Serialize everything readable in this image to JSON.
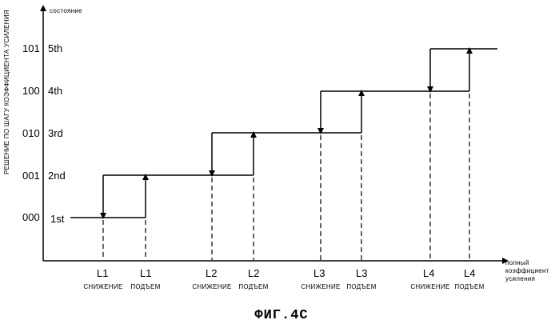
{
  "y_axis": {
    "label_top": "состояние",
    "label_side": "РЕШЕНИЕ ПО ШАГУ КОЭФФИЦИЕНТА УСИЛЕНИЯ"
  },
  "x_axis": {
    "label_line1": "полный",
    "label_line2": "коэффициент",
    "label_line3": "усиления"
  },
  "states": [
    {
      "code": "000",
      "name": "1st"
    },
    {
      "code": "001",
      "name": "2nd"
    },
    {
      "code": "010",
      "name": "3rd"
    },
    {
      "code": "100",
      "name": "4th"
    },
    {
      "code": "101",
      "name": "5th"
    }
  ],
  "thresholds": [
    {
      "level": "L1",
      "action": "СНИЖЕНИЕ"
    },
    {
      "level": "L1",
      "action": "ПОДЪЕМ"
    },
    {
      "level": "L2",
      "action": "СНИЖЕНИЕ"
    },
    {
      "level": "L2",
      "action": "ПОДЪЕМ"
    },
    {
      "level": "L3",
      "action": "СНИЖЕНИЕ"
    },
    {
      "level": "L3",
      "action": "ПОДЪЕМ"
    },
    {
      "level": "L4",
      "action": "СНИЖЕНИЕ"
    },
    {
      "level": "L4",
      "action": "ПОДЪЕМ"
    }
  ],
  "caption": "ФИГ.4C"
}
